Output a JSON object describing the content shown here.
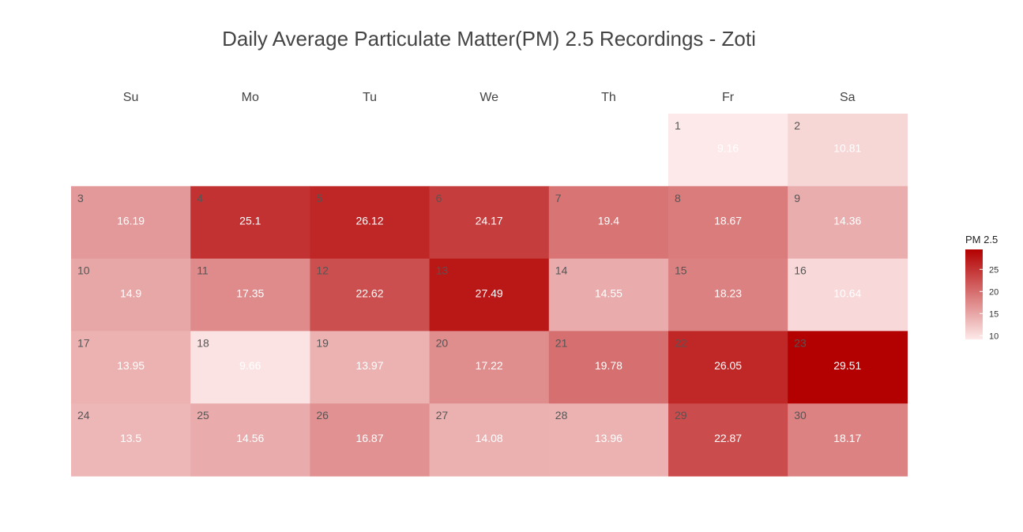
{
  "chart_data": {
    "type": "heatmap",
    "title": "Daily Average Particulate Matter(PM) 2.5 Recordings - Zoti",
    "weekdays": [
      "Su",
      "Mo",
      "Tu",
      "We",
      "Th",
      "Fr",
      "Sa"
    ],
    "first_weekday_index": 5,
    "days": [
      {
        "day": 1,
        "value": 9.16
      },
      {
        "day": 2,
        "value": 10.81
      },
      {
        "day": 3,
        "value": 16.19
      },
      {
        "day": 4,
        "value": 25.1
      },
      {
        "day": 5,
        "value": 26.12
      },
      {
        "day": 6,
        "value": 24.17
      },
      {
        "day": 7,
        "value": 19.4
      },
      {
        "day": 8,
        "value": 18.67
      },
      {
        "day": 9,
        "value": 14.36
      },
      {
        "day": 10,
        "value": 14.9
      },
      {
        "day": 11,
        "value": 17.35
      },
      {
        "day": 12,
        "value": 22.62
      },
      {
        "day": 13,
        "value": 27.49
      },
      {
        "day": 14,
        "value": 14.55
      },
      {
        "day": 15,
        "value": 18.23
      },
      {
        "day": 16,
        "value": 10.64
      },
      {
        "day": 17,
        "value": 13.95
      },
      {
        "day": 18,
        "value": 9.66
      },
      {
        "day": 19,
        "value": 13.97
      },
      {
        "day": 20,
        "value": 17.22
      },
      {
        "day": 21,
        "value": 19.78
      },
      {
        "day": 22,
        "value": 26.05
      },
      {
        "day": 23,
        "value": 29.51
      },
      {
        "day": 24,
        "value": 13.5
      },
      {
        "day": 25,
        "value": 14.56
      },
      {
        "day": 26,
        "value": 16.87
      },
      {
        "day": 27,
        "value": 14.08
      },
      {
        "day": 28,
        "value": 13.96
      },
      {
        "day": 29,
        "value": 22.87
      },
      {
        "day": 30,
        "value": 18.17
      }
    ],
    "colorscale": {
      "title": "PM 2.5",
      "min": 9.16,
      "max": 29.51,
      "low_color": "#fde9e9",
      "high_color": "#b30000",
      "ticks": [
        10,
        15,
        20,
        25
      ]
    },
    "legend_position": "right"
  }
}
